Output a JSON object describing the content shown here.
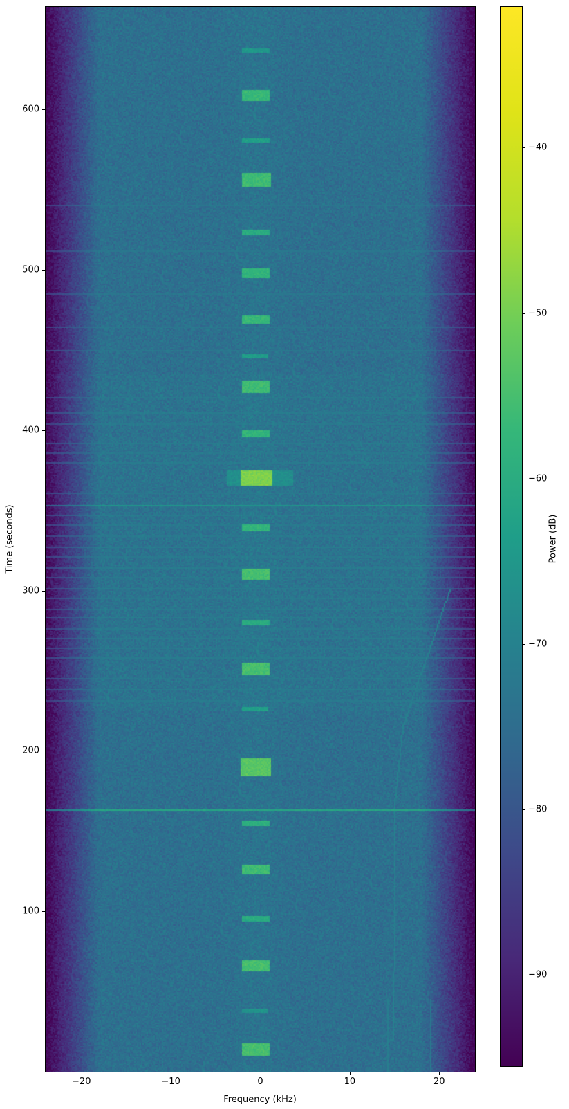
{
  "chart_data": {
    "type": "heatmap",
    "subtype": "spectrogram-waterfall",
    "title": "",
    "xlabel": "Frequency (kHz)",
    "ylabel": "Time (seconds)",
    "colorbar_label": "Power (dB)",
    "x_range_khz": [
      -24,
      24
    ],
    "y_range_s": [
      0,
      664
    ],
    "value_range_db": [
      -95.5,
      -31.5
    ],
    "grid": false,
    "x_ticks": [
      {
        "v": -20,
        "label": "−20"
      },
      {
        "v": -10,
        "label": "−10"
      },
      {
        "v": 0,
        "label": "0"
      },
      {
        "v": 10,
        "label": "10"
      },
      {
        "v": 20,
        "label": "20"
      }
    ],
    "y_ticks": [
      {
        "v": 100,
        "label": "100"
      },
      {
        "v": 200,
        "label": "200"
      },
      {
        "v": 300,
        "label": "300"
      },
      {
        "v": 400,
        "label": "400"
      },
      {
        "v": 500,
        "label": "500"
      },
      {
        "v": 600,
        "label": "600"
      }
    ],
    "colorbar_ticks": [
      {
        "v": -40,
        "label": "−40"
      },
      {
        "v": -50,
        "label": "−50"
      },
      {
        "v": -60,
        "label": "−60"
      },
      {
        "v": -70,
        "label": "−70"
      },
      {
        "v": -80,
        "label": "−80"
      },
      {
        "v": -90,
        "label": "−90"
      }
    ],
    "colormap": {
      "name": "viridis",
      "stops": [
        [
          0.0,
          "#440154"
        ],
        [
          0.1,
          "#482878"
        ],
        [
          0.2,
          "#3e4989"
        ],
        [
          0.3,
          "#31688e"
        ],
        [
          0.4,
          "#26828e"
        ],
        [
          0.5,
          "#1f9e89"
        ],
        [
          0.6,
          "#35b779"
        ],
        [
          0.7,
          "#6dcd59"
        ],
        [
          0.8,
          "#b4de2c"
        ],
        [
          0.9,
          "#dfe318"
        ],
        [
          1.0,
          "#fde725"
        ]
      ]
    },
    "noise_floor": {
      "base_db": -74.3,
      "noise_amplitude_db": 4.3,
      "edge_start_khz": 18,
      "edge_falloff_db_per_khz": 3.5,
      "center_bump_db": 1.0,
      "center_bump_khz": -0.5,
      "center_bump_width_khz": 2.6,
      "midband_time_s": [
        225,
        435
      ],
      "midband_boost_db": 0.8
    },
    "bursts": [
      {
        "t": 637,
        "dur": 2,
        "f0": -1.9,
        "f1": 0.9,
        "db": -65
      },
      {
        "t": 609,
        "dur": 6,
        "f0": -2.0,
        "f1": 1.0,
        "db": -57
      },
      {
        "t": 581,
        "dur": 2,
        "f0": -1.9,
        "f1": 0.9,
        "db": -63
      },
      {
        "t": 556,
        "dur": 8,
        "f0": -2.0,
        "f1": 1.1,
        "db": -56
      },
      {
        "t": 523,
        "dur": 2.5,
        "f0": -1.9,
        "f1": 0.9,
        "db": -60
      },
      {
        "t": 498,
        "dur": 5,
        "f0": -2.0,
        "f1": 1.0,
        "db": -58
      },
      {
        "t": 469,
        "dur": 5,
        "f0": -2.0,
        "f1": 1.0,
        "db": -57
      },
      {
        "t": 446,
        "dur": 2,
        "f0": -1.9,
        "f1": 0.8,
        "db": -64
      },
      {
        "t": 427,
        "dur": 7,
        "f0": -2.0,
        "f1": 1.0,
        "db": -56
      },
      {
        "t": 398,
        "dur": 3,
        "f0": -1.9,
        "f1": 1.0,
        "db": -58
      },
      {
        "t": 370,
        "dur": 9,
        "f0": -2.1,
        "f1": 1.2,
        "db": -49,
        "wing_f0": -3.6,
        "wing_f1": 3.6,
        "wing_db": -67
      },
      {
        "t": 339,
        "dur": 3,
        "f0": -1.9,
        "f1": 1.0,
        "db": -58
      },
      {
        "t": 310,
        "dur": 6,
        "f0": -2.0,
        "f1": 1.0,
        "db": -55
      },
      {
        "t": 280,
        "dur": 2.5,
        "f0": -1.9,
        "f1": 0.9,
        "db": -60
      },
      {
        "t": 251,
        "dur": 6.5,
        "f0": -2.0,
        "f1": 1.0,
        "db": -55
      },
      {
        "t": 226,
        "dur": 2,
        "f0": -1.9,
        "f1": 0.8,
        "db": -63
      },
      {
        "t": 190,
        "dur": 10,
        "f0": -2.1,
        "f1": 1.1,
        "db": -53
      },
      {
        "t": 155,
        "dur": 3,
        "f0": -1.9,
        "f1": 1.0,
        "db": -59
      },
      {
        "t": 126,
        "dur": 6,
        "f0": -2.0,
        "f1": 1.0,
        "db": -56
      },
      {
        "t": 95,
        "dur": 2.5,
        "f0": -1.9,
        "f1": 0.9,
        "db": -60
      },
      {
        "t": 66,
        "dur": 6,
        "f0": -2.0,
        "f1": 1.0,
        "db": -55
      },
      {
        "t": 38,
        "dur": 2,
        "f0": -1.9,
        "f1": 0.8,
        "db": -66
      },
      {
        "t": 14,
        "dur": 7,
        "f0": -2.0,
        "f1": 1.0,
        "db": -55
      }
    ],
    "interference_lines": [
      {
        "t": 163,
        "db": -61
      },
      {
        "t": 353,
        "db": -66
      },
      {
        "t": 420,
        "db": -72
      },
      {
        "t": 411,
        "db": -71.5
      },
      {
        "t": 404,
        "db": -72
      },
      {
        "t": 392,
        "db": -71.5
      },
      {
        "t": 386,
        "db": -72
      },
      {
        "t": 380,
        "db": -71.5
      },
      {
        "t": 361,
        "db": -72
      },
      {
        "t": 347,
        "db": -71.5
      },
      {
        "t": 341,
        "db": -72
      },
      {
        "t": 334,
        "db": -72
      },
      {
        "t": 327,
        "db": -71.5
      },
      {
        "t": 321,
        "db": -72
      },
      {
        "t": 314,
        "db": -71.5
      },
      {
        "t": 308,
        "db": -72
      },
      {
        "t": 301,
        "db": -71.5
      },
      {
        "t": 295,
        "db": -72
      },
      {
        "t": 288,
        "db": -72
      },
      {
        "t": 283,
        "db": -71.5
      },
      {
        "t": 276,
        "db": -72
      },
      {
        "t": 270,
        "db": -71.5
      },
      {
        "t": 264,
        "db": -72
      },
      {
        "t": 258,
        "db": -71.5
      },
      {
        "t": 245,
        "db": -72
      },
      {
        "t": 238,
        "db": -71.5
      },
      {
        "t": 231,
        "db": -72
      },
      {
        "t": 450,
        "db": -72.5
      },
      {
        "t": 464,
        "db": -72.5
      },
      {
        "t": 485,
        "db": -72.5
      },
      {
        "t": 512,
        "db": -72.5
      },
      {
        "t": 540,
        "db": -72.5
      }
    ],
    "drift_track": {
      "points_khz_s": [
        [
          21.2,
          300
        ],
        [
          16.0,
          216
        ],
        [
          15.1,
          170
        ],
        [
          14.9,
          20
        ]
      ],
      "db": -70.5
    },
    "vertical_lines": [
      {
        "f": 14.3,
        "t0": 0,
        "t1": 45,
        "db": -71
      },
      {
        "f": 19.0,
        "t0": 0,
        "t1": 45,
        "db": -72.5
      }
    ]
  }
}
